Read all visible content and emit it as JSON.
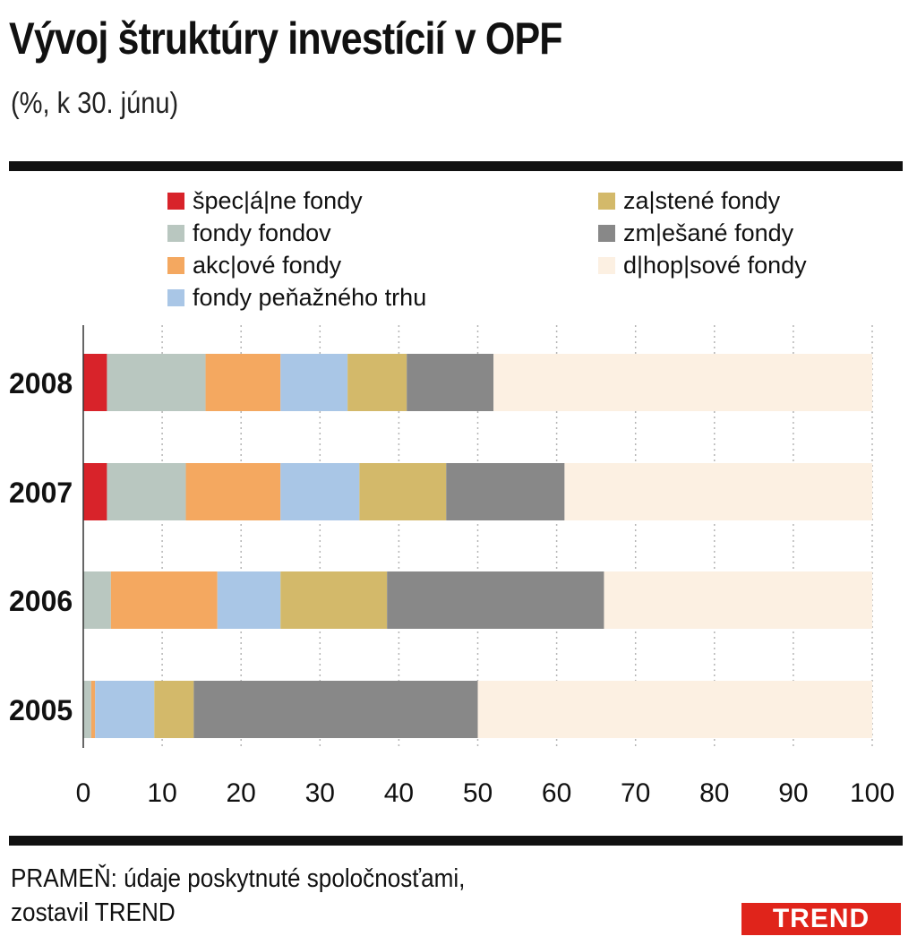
{
  "title": "Vývoj štruktúry investícií v OPF",
  "subtitle": "(%, k 30. júnu)",
  "source_line1": "PRAMEŇ: údaje poskytnuté spoločnosťami,",
  "source_line2": "zostavil TREND",
  "logo_text": "TREND",
  "chart_data": {
    "type": "bar",
    "orientation": "horizontal",
    "stacked": true,
    "categories": [
      "2008",
      "2007",
      "2006",
      "2005"
    ],
    "series": [
      {
        "name": "špeciálne fondy",
        "color": "#d8232a",
        "values": [
          3,
          3,
          0,
          0
        ]
      },
      {
        "name": "zaistené fondy",
        "color": "#b9c7c0",
        "values": [
          12.5,
          10,
          3.5,
          1
        ]
      },
      {
        "name": "fondy fondov",
        "color": "#f4a860",
        "values": [
          9.5,
          12,
          13.5,
          0.5
        ]
      },
      {
        "name": "zmiešané fondy",
        "color": "#a9c6e6",
        "values": [
          8.5,
          10,
          8,
          7.5
        ]
      },
      {
        "name": "akciové fondy",
        "color": "#d3b96a",
        "values": [
          7.5,
          11,
          13.5,
          5
        ]
      },
      {
        "name": "dlhopisové fondy",
        "color": "#888888",
        "values": [
          11,
          15,
          27.5,
          36
        ]
      },
      {
        "name": "fondy peňažného trhu",
        "color": "#fcf0e2",
        "values": [
          48,
          39,
          34,
          50
        ]
      }
    ],
    "legend_display": [
      "špec|á|ne fondy",
      "fondy fondov",
      "akc|ové fondy",
      "fondy peňažného trhu",
      "za|stené fondy",
      "zm|ešané fondy",
      "d|hop|sové fondy"
    ],
    "x_ticks": [
      0,
      10,
      20,
      30,
      40,
      50,
      60,
      70,
      80,
      90,
      100
    ],
    "xlim": [
      0,
      100
    ],
    "grid": "vertical-dotted",
    "legend_position": "top"
  }
}
